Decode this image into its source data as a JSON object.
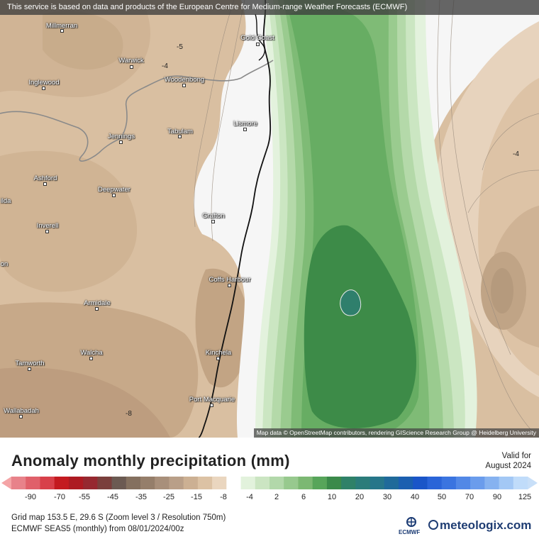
{
  "header": {
    "notice": "This service is based on data and products of the European Centre for Medium-range Weather Forecasts (ECMWF)"
  },
  "map": {
    "attribution": "Map data © OpenStreetMap contributors, rendering GIScience Research Group @ Heidelberg University",
    "places": [
      {
        "name": "Millmerran"
      },
      {
        "name": "Gold Coast"
      },
      {
        "name": "Warwick"
      },
      {
        "name": "Inglewood"
      },
      {
        "name": "Woodenbong"
      },
      {
        "name": "Lismore"
      },
      {
        "name": "Jennings"
      },
      {
        "name": "Tabulam"
      },
      {
        "name": "Ashford"
      },
      {
        "name": "Deepwater"
      },
      {
        "name": "ilda"
      },
      {
        "name": "Grafton"
      },
      {
        "name": "Inverell"
      },
      {
        "name": "on"
      },
      {
        "name": "Coffs Harbour"
      },
      {
        "name": "Armidale"
      },
      {
        "name": "Walcha"
      },
      {
        "name": "Kinchela"
      },
      {
        "name": "Tamworth"
      },
      {
        "name": "Port Macquarie"
      },
      {
        "name": "Wallabadah"
      }
    ],
    "contour_labels": [
      "-5",
      "-4",
      "-4",
      "-8"
    ]
  },
  "legend": {
    "title": "Anomaly monthly precipitation (mm)",
    "valid_label": "Valid for",
    "valid_date": "August 2024",
    "ticks": [
      "-90",
      "-70",
      "-55",
      "-45",
      "-35",
      "-25",
      "-15",
      "-8",
      "-4",
      "2",
      "6",
      "10",
      "20",
      "30",
      "40",
      "50",
      "70",
      "90",
      "125"
    ],
    "colors": [
      "#e8828a",
      "#e0606a",
      "#d8404a",
      "#c41a20",
      "#ad1a22",
      "#962830",
      "#7a3f3c",
      "#6b5a52",
      "#84705f",
      "#957e6a",
      "#a88f7a",
      "#b99f88",
      "#ccb093",
      "#dcc2a4",
      "#ead6bf",
      "#ffffff",
      "#e2f2dc",
      "#cbe5c2",
      "#b2d8aa",
      "#97c98e",
      "#7cb873",
      "#57a55a",
      "#3b8a4a",
      "#2f8168",
      "#2b7c7a",
      "#26768a",
      "#1f6a9a",
      "#1b5fb0",
      "#1a55c8",
      "#2a64d8",
      "#3a74e0",
      "#5288e6",
      "#6a9cec",
      "#86b2f0",
      "#a3c8f5",
      "#c0dcfa"
    ],
    "colors_neg_bg": "#f4a4a6",
    "colors_pos_end": "#c8dff8"
  },
  "footer": {
    "grid_info": "Grid map 153.5 E, 29.6 S (Zoom level 3 / Resolution 750m)",
    "model_info": "ECMWF SEAS5 (monthly) from  08/01/2024/00z",
    "ecmwf_label": "ECMWF",
    "brand": "meteologix.com"
  }
}
